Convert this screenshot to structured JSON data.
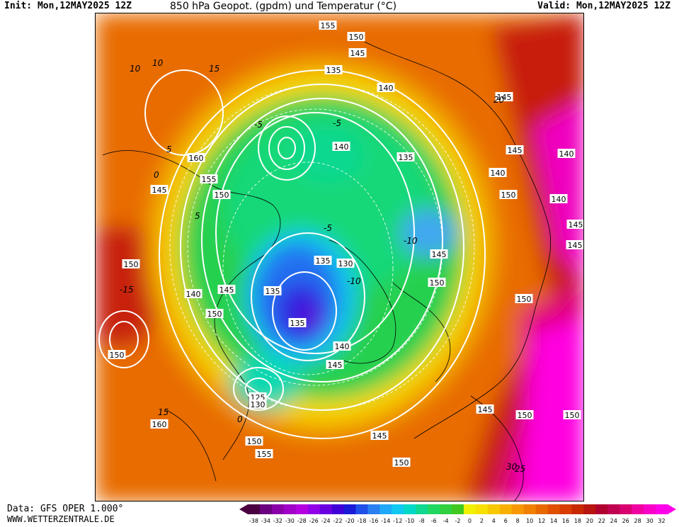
{
  "header": {
    "init": "Init: Mon,12MAY2025 12Z",
    "title": "850 hPa Geopot. (gpdm) und Temperatur (°C)",
    "valid": "Valid: Mon,12MAY2025 12Z"
  },
  "footer": {
    "data_source": "Data: GFS OPER 1.000°",
    "website": "WWW.WETTERZENTRALE.DE"
  },
  "colorbar": {
    "ticks": [
      "-38",
      "-34",
      "-32",
      "-30",
      "-28",
      "-26",
      "-24",
      "-22",
      "-20",
      "-18",
      "-16",
      "-14",
      "-12",
      "-10",
      "-8",
      "-6",
      "-4",
      "-2",
      "0",
      "2",
      "4",
      "6",
      "8",
      "10",
      "12",
      "14",
      "16",
      "18",
      "20",
      "22",
      "24",
      "26",
      "28",
      "30",
      "32"
    ],
    "colors": [
      "#4a0040",
      "#6a0080",
      "#8a00a8",
      "#a000c8",
      "#b400e0",
      "#9000e8",
      "#6a00e0",
      "#4000d8",
      "#1a1ad8",
      "#2050e8",
      "#2a80f0",
      "#20a8f8",
      "#10c8f0",
      "#00d8c8",
      "#10d890",
      "#20d860",
      "#30d040",
      "#40c820",
      "#f0f000",
      "#f8e000",
      "#f8c800",
      "#f8b000",
      "#f89800",
      "#f08000",
      "#e86800",
      "#e05000",
      "#d83c00",
      "#c82800",
      "#b81410",
      "#b00030",
      "#c00050",
      "#d80070",
      "#f000a0",
      "#f800c8",
      "#ff00e8"
    ]
  },
  "map": {
    "geopotential_labels": [
      "155",
      "150",
      "145",
      "135",
      "140",
      "145",
      "160",
      "155",
      "150",
      "145",
      "140",
      "135",
      "140",
      "150",
      "145",
      "140",
      "140",
      "145",
      "145",
      "150",
      "135",
      "130",
      "135",
      "135",
      "140",
      "145",
      "150",
      "150",
      "140",
      "145",
      "150",
      "145",
      "150",
      "150",
      "125",
      "130",
      "160",
      "150",
      "155",
      "150",
      "145",
      "145",
      "150"
    ],
    "temperature_labels": [
      "10",
      "5",
      "0",
      "-5",
      "-5",
      "-5",
      "-10",
      "-10",
      "0",
      "-15",
      "5",
      "10",
      "20",
      "15",
      "15",
      "25",
      "30"
    ]
  }
}
